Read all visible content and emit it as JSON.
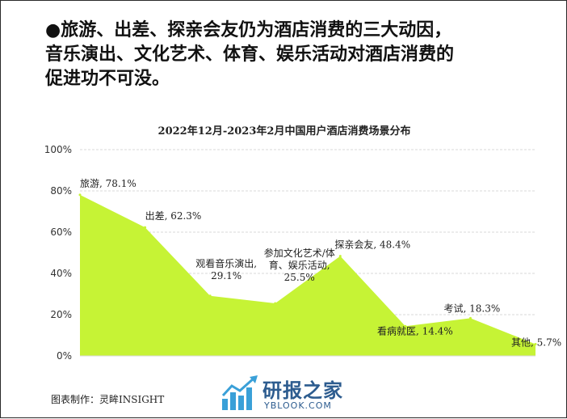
{
  "headline": {
    "line1": "●旅游、出差、探亲会友仍为酒店消费的三大动因，",
    "line2": "音乐演出、文化艺术、体育、娱乐活动对酒店消费的",
    "line3": "促进功不可没。"
  },
  "chart_data": {
    "type": "area",
    "title": "2022年12月-2023年2月中国用户酒店消费场景分布",
    "categories": [
      "旅游",
      "出差",
      "观看音乐演出",
      "参加文化艺术/体育、娱乐活动",
      "探亲会友",
      "看病就医",
      "考试",
      "其他"
    ],
    "values": [
      78.1,
      62.3,
      29.1,
      25.5,
      48.4,
      14.4,
      18.3,
      5.7
    ],
    "data_labels": [
      [
        "旅游, 78.1%"
      ],
      [
        "出差, 62.3%"
      ],
      [
        "观看音乐演出,",
        "29.1%"
      ],
      [
        "参加文化艺术/体",
        "育、娱乐活动,",
        "25.5%"
      ],
      [
        "探亲会友, 48.4%"
      ],
      [
        "看病就医, 14.4%"
      ],
      [
        "考试, 18.3%"
      ],
      [
        "其他, 5.7%"
      ]
    ],
    "yticks": [
      "0%",
      "20%",
      "40%",
      "60%",
      "80%",
      "100%"
    ],
    "ylim": [
      0,
      100
    ],
    "grid": true,
    "fill_color": "#c6f335"
  },
  "credit": "图表制作：灵眸INSIGHT",
  "watermark": {
    "name": "研报之家",
    "url": "YBLOOK.COM"
  }
}
